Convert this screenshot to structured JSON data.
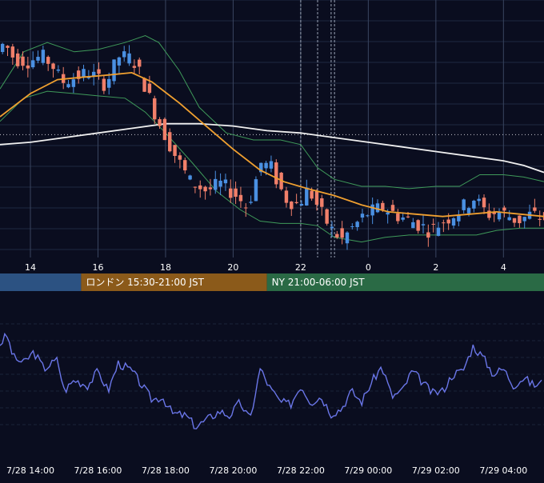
{
  "colors": {
    "background": "#0a0d1f",
    "grid": "#1f2940",
    "candle_up": "#4a90e2",
    "candle_down": "#f07f6a",
    "bb_band": "#3f9a5a",
    "ma_short": "#f0a030",
    "ma_long": "#f0f0f0",
    "oscillator": "#6a76e8",
    "tokyo_session": "#2c5282",
    "london_session": "#8b5a1a",
    "ny_session": "#2a6a45"
  },
  "sessions": [
    {
      "label": "",
      "color": "#2c5282",
      "from_hour": 12.0,
      "to_hour": 15.5
    },
    {
      "label": "ロンドン 15:30-21:00 JST",
      "color": "#8b5a1a",
      "from_hour": 15.5,
      "to_hour": 21.0
    },
    {
      "label": "NY 21:00-06:00 JST",
      "color": "#2a6a45",
      "from_hour": 21.0,
      "to_hour": 30.0
    }
  ],
  "chart_data": [
    {
      "type": "candlestick",
      "title": "",
      "xlabel": "",
      "ylabel": "",
      "x_range_hours": [
        13.1,
        29.2
      ],
      "y_range": [
        0,
        100
      ],
      "x_ticks": [
        {
          "hour": 14,
          "label": "14"
        },
        {
          "hour": 16,
          "label": "16"
        },
        {
          "hour": 18,
          "label": "18"
        },
        {
          "hour": 20,
          "label": "20"
        },
        {
          "hour": 22,
          "label": "22"
        },
        {
          "hour": 24,
          "label": "0"
        },
        {
          "hour": 26,
          "label": "2"
        },
        {
          "hour": 28,
          "label": "4"
        }
      ],
      "grid": true,
      "reference_line": 52.3,
      "event_lines_hours": [
        22.0,
        22.5,
        22.9,
        23.0
      ],
      "price_path": [
        [
          13.1,
          88
        ],
        [
          13.3,
          92
        ],
        [
          13.6,
          85
        ],
        [
          14.0,
          84
        ],
        [
          14.4,
          86
        ],
        [
          14.7,
          83
        ],
        [
          15.0,
          75
        ],
        [
          15.4,
          77
        ],
        [
          15.8,
          79
        ],
        [
          16.3,
          74
        ],
        [
          16.7,
          86
        ],
        [
          17.1,
          85
        ],
        [
          17.4,
          76
        ],
        [
          17.8,
          60
        ],
        [
          18.3,
          45
        ],
        [
          18.8,
          32
        ],
        [
          19.3,
          28
        ],
        [
          19.7,
          31
        ],
        [
          20.1,
          27
        ],
        [
          20.5,
          21
        ],
        [
          20.9,
          40
        ],
        [
          21.2,
          38
        ],
        [
          21.6,
          25
        ],
        [
          22.0,
          22
        ],
        [
          22.3,
          29
        ],
        [
          22.7,
          18
        ],
        [
          23.0,
          11
        ],
        [
          23.3,
          7
        ],
        [
          23.6,
          12
        ],
        [
          24.0,
          18
        ],
        [
          24.5,
          21
        ],
        [
          25.0,
          17
        ],
        [
          25.5,
          14
        ],
        [
          25.9,
          11
        ],
        [
          26.3,
          15
        ],
        [
          26.8,
          20
        ],
        [
          27.2,
          25
        ],
        [
          27.6,
          18
        ],
        [
          28.0,
          19
        ],
        [
          28.5,
          15
        ],
        [
          28.9,
          18
        ],
        [
          29.2,
          16
        ]
      ],
      "ma_short": [
        [
          13.1,
          60
        ],
        [
          14.0,
          70
        ],
        [
          14.8,
          76
        ],
        [
          15.5,
          77
        ],
        [
          16.3,
          78
        ],
        [
          17.0,
          79
        ],
        [
          17.6,
          75
        ],
        [
          18.4,
          66
        ],
        [
          19.2,
          56
        ],
        [
          20.0,
          46
        ],
        [
          20.8,
          37
        ],
        [
          21.5,
          32
        ],
        [
          22.2,
          29
        ],
        [
          23.0,
          26
        ],
        [
          23.8,
          22
        ],
        [
          24.6,
          19
        ],
        [
          25.4,
          18
        ],
        [
          26.2,
          17
        ],
        [
          27.0,
          18
        ],
        [
          27.8,
          19
        ],
        [
          28.5,
          18
        ],
        [
          29.2,
          17
        ]
      ],
      "ma_long": [
        [
          13.1,
          48
        ],
        [
          14.0,
          49
        ],
        [
          15.0,
          51
        ],
        [
          16.0,
          53
        ],
        [
          17.0,
          55
        ],
        [
          18.0,
          57
        ],
        [
          19.0,
          57
        ],
        [
          20.0,
          56
        ],
        [
          21.0,
          54
        ],
        [
          22.0,
          53
        ],
        [
          23.0,
          51
        ],
        [
          24.0,
          49
        ],
        [
          25.0,
          47
        ],
        [
          26.0,
          45
        ],
        [
          27.0,
          43
        ],
        [
          28.0,
          41
        ],
        [
          28.6,
          39
        ],
        [
          29.2,
          36
        ]
      ],
      "bb_upper": [
        [
          13.1,
          72
        ],
        [
          13.8,
          88
        ],
        [
          14.5,
          92
        ],
        [
          15.3,
          88
        ],
        [
          16.0,
          89
        ],
        [
          16.8,
          92
        ],
        [
          17.4,
          95
        ],
        [
          17.8,
          92
        ],
        [
          18.4,
          80
        ],
        [
          19.0,
          64
        ],
        [
          19.8,
          53
        ],
        [
          20.6,
          50
        ],
        [
          21.4,
          50
        ],
        [
          22.0,
          48
        ],
        [
          22.5,
          38
        ],
        [
          23.0,
          33
        ],
        [
          23.8,
          30
        ],
        [
          24.5,
          30
        ],
        [
          25.2,
          29
        ],
        [
          26.0,
          30
        ],
        [
          26.7,
          30
        ],
        [
          27.3,
          35
        ],
        [
          28.0,
          35
        ],
        [
          28.6,
          34
        ],
        [
          29.2,
          32
        ]
      ],
      "bb_lower": [
        [
          13.1,
          58
        ],
        [
          13.8,
          68
        ],
        [
          14.5,
          71
        ],
        [
          15.3,
          70
        ],
        [
          16.0,
          69
        ],
        [
          16.8,
          68
        ],
        [
          17.4,
          62
        ],
        [
          18.0,
          53
        ],
        [
          18.8,
          40
        ],
        [
          19.5,
          28
        ],
        [
          20.2,
          20
        ],
        [
          20.8,
          15
        ],
        [
          21.4,
          14
        ],
        [
          22.0,
          14
        ],
        [
          22.5,
          13
        ],
        [
          23.0,
          8
        ],
        [
          23.8,
          6
        ],
        [
          24.5,
          8
        ],
        [
          25.2,
          9
        ],
        [
          26.0,
          9
        ],
        [
          26.7,
          9
        ],
        [
          27.2,
          9
        ],
        [
          27.8,
          11
        ],
        [
          28.5,
          12
        ],
        [
          29.2,
          12
        ]
      ]
    },
    {
      "type": "line",
      "title": "",
      "xlabel": "",
      "ylabel": "",
      "x_range_hours": [
        13.1,
        29.2
      ],
      "y_range": [
        0,
        100
      ],
      "x_ticks": [
        {
          "hour": 14,
          "label": "7/28 14:00"
        },
        {
          "hour": 16,
          "label": "7/28 16:00"
        },
        {
          "hour": 18,
          "label": "7/28 18:00"
        },
        {
          "hour": 20,
          "label": "7/28 20:00"
        },
        {
          "hour": 22,
          "label": "7/28 22:00"
        },
        {
          "hour": 24,
          "label": "7/29 00:00"
        },
        {
          "hour": 26,
          "label": "7/29 02:00"
        },
        {
          "hour": 28,
          "label": "7/29 04:00"
        }
      ],
      "grid": true,
      "series": [
        {
          "name": "",
          "values": [
            [
              13.1,
              82
            ],
            [
              13.3,
              90
            ],
            [
              13.5,
              70
            ],
            [
              13.8,
              65
            ],
            [
              14.1,
              75
            ],
            [
              14.4,
              60
            ],
            [
              14.8,
              68
            ],
            [
              15.0,
              40
            ],
            [
              15.3,
              50
            ],
            [
              15.7,
              45
            ],
            [
              16.0,
              58
            ],
            [
              16.3,
              40
            ],
            [
              16.6,
              65
            ],
            [
              17.0,
              58
            ],
            [
              17.3,
              45
            ],
            [
              17.6,
              32
            ],
            [
              17.9,
              35
            ],
            [
              18.2,
              20
            ],
            [
              18.6,
              18
            ],
            [
              18.9,
              8
            ],
            [
              19.2,
              14
            ],
            [
              19.6,
              22
            ],
            [
              19.9,
              18
            ],
            [
              20.2,
              30
            ],
            [
              20.5,
              14
            ],
            [
              20.8,
              60
            ],
            [
              21.1,
              42
            ],
            [
              21.4,
              30
            ],
            [
              21.7,
              28
            ],
            [
              22.0,
              45
            ],
            [
              22.3,
              30
            ],
            [
              22.6,
              35
            ],
            [
              22.9,
              20
            ],
            [
              23.2,
              24
            ],
            [
              23.5,
              40
            ],
            [
              23.8,
              30
            ],
            [
              24.1,
              48
            ],
            [
              24.4,
              62
            ],
            [
              24.7,
              35
            ],
            [
              25.0,
              40
            ],
            [
              25.3,
              58
            ],
            [
              25.6,
              48
            ],
            [
              25.9,
              38
            ],
            [
              26.2,
              40
            ],
            [
              26.5,
              55
            ],
            [
              26.8,
              58
            ],
            [
              27.1,
              80
            ],
            [
              27.4,
              70
            ],
            [
              27.7,
              55
            ],
            [
              28.0,
              60
            ],
            [
              28.3,
              45
            ],
            [
              28.6,
              52
            ],
            [
              28.9,
              45
            ],
            [
              29.2,
              48
            ]
          ]
        }
      ]
    }
  ]
}
